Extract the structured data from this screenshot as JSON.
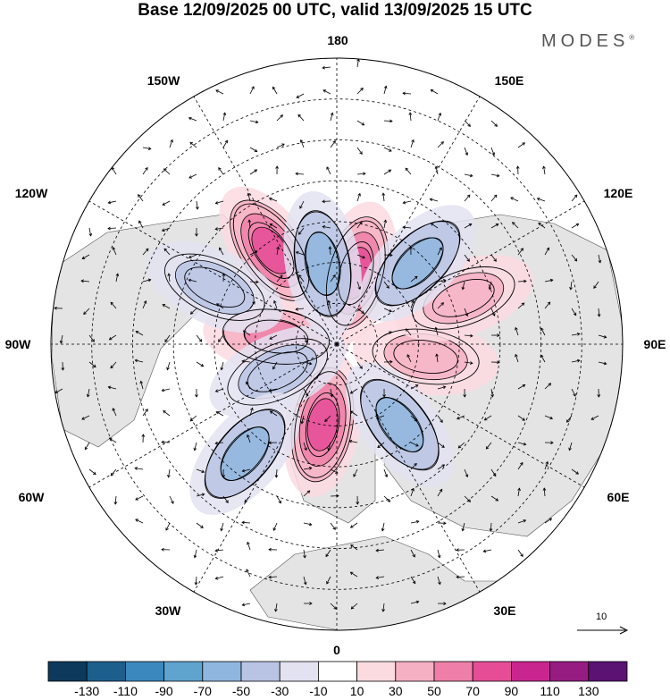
{
  "title": "Base 12/09/2025 00 UTC, valid 13/09/2025 15 UTC",
  "brand": {
    "name": "MODES",
    "mark": "®"
  },
  "longitude_labels": {
    "top": "180",
    "top_left": "150W",
    "top_right": "150E",
    "upper_left": "120W",
    "upper_right": "120E",
    "left": "90W",
    "right": "90E",
    "lower_left": "60W",
    "lower_right": "60E",
    "bottom_left": "30W",
    "bottom_right": "30E",
    "bottom": "0"
  },
  "reference_vector": {
    "label": "10"
  },
  "colorbar": {
    "tick_labels": [
      "-130",
      "-110",
      "-90",
      "-70",
      "-50",
      "-30",
      "-10",
      "10",
      "30",
      "50",
      "70",
      "90",
      "110",
      "130"
    ],
    "colors": [
      "#0d3a5c",
      "#1c5f8c",
      "#3a88bd",
      "#5fa3cf",
      "#8fb6de",
      "#b9c4e4",
      "#e3e2f1",
      "#ffffff",
      "#fbdbe0",
      "#f6b0c3",
      "#ef7fa8",
      "#e54d97",
      "#c8258e",
      "#961c82",
      "#5a1273"
    ]
  },
  "anomalies": {
    "highs": [
      {
        "value": 95,
        "lon": 165,
        "lat": 72
      },
      {
        "value": 80,
        "lon": -145,
        "lat": 62
      },
      {
        "value": 70,
        "lon": -97,
        "lat": 75
      },
      {
        "value": 80,
        "lon": -10,
        "lat": 70
      },
      {
        "value": 50,
        "lon": 82,
        "lat": 68
      },
      {
        "value": 40,
        "lon": 110,
        "lat": 57
      }
    ],
    "lows": [
      {
        "value": -60,
        "lon": -170,
        "lat": 70
      },
      {
        "value": -60,
        "lon": 135,
        "lat": 62
      },
      {
        "value": -55,
        "lon": -115,
        "lat": 57
      },
      {
        "value": -55,
        "lon": -65,
        "lat": 74
      },
      {
        "value": -60,
        "lon": -40,
        "lat": 55
      },
      {
        "value": -60,
        "lon": 38,
        "lat": 65
      }
    ]
  }
}
